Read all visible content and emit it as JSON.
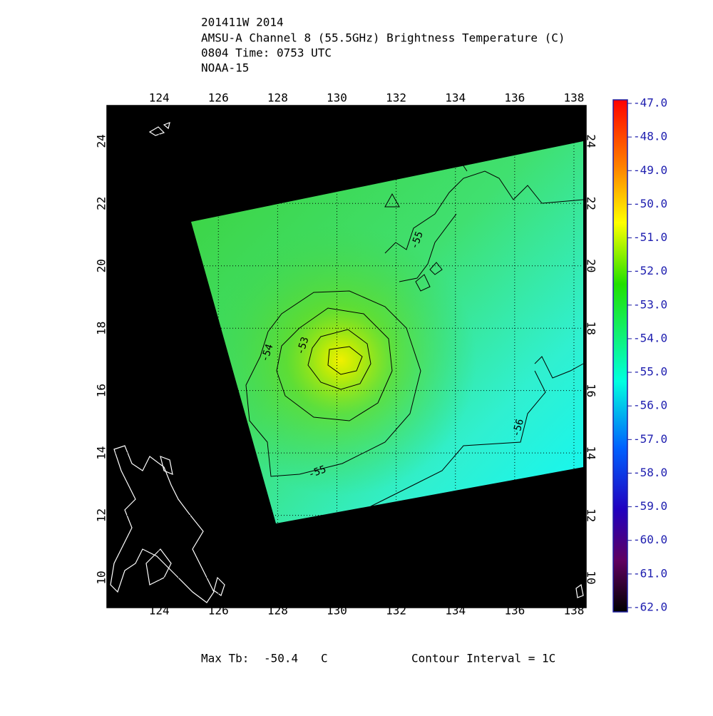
{
  "title_lines": [
    "201411W 2014",
    "AMSU-A Channel 8 (55.5GHz) Brightness Temperature (C)",
    "0804 Time: 0753 UTC",
    "NOAA-15"
  ],
  "chart_data": {
    "type": "map",
    "xlim": [
      122.24,
      138.41
    ],
    "ylim": [
      9.04,
      25.14
    ],
    "xticks": [
      124,
      126,
      128,
      130,
      132,
      134,
      136,
      138
    ],
    "yticks": [
      10,
      12,
      14,
      16,
      18,
      20,
      22,
      24
    ],
    "grid": true,
    "colorbar": {
      "lim": [
        -62,
        -47
      ],
      "ticks": [
        {
          "value": -47,
          "label": "-47.0"
        },
        {
          "value": -48,
          "label": "-48.0"
        },
        {
          "value": -49,
          "label": "-49.0"
        },
        {
          "value": -50,
          "label": "-50.0"
        },
        {
          "value": -51,
          "label": "-51.0"
        },
        {
          "value": -52,
          "label": "-52.0"
        },
        {
          "value": -53,
          "label": "-53.0"
        },
        {
          "value": -54,
          "label": "-54.0"
        },
        {
          "value": -55,
          "label": "-55.0"
        },
        {
          "value": -56,
          "label": "-56.0"
        },
        {
          "value": -57,
          "label": "-57.0"
        },
        {
          "value": -58,
          "label": "-58.0"
        },
        {
          "value": -59,
          "label": "-59.0"
        },
        {
          "value": -60,
          "label": "-60.0"
        },
        {
          "value": -61,
          "label": "-61.0"
        },
        {
          "value": -62,
          "label": "-62.0"
        }
      ]
    },
    "contour_labels": [
      -54,
      -53,
      -55,
      -55,
      -56
    ]
  },
  "footer": {
    "max_tb_label": "Max Tb:",
    "max_tb": -50.4,
    "unit": "C",
    "contour_interval": "Contour Interval = 1C"
  }
}
